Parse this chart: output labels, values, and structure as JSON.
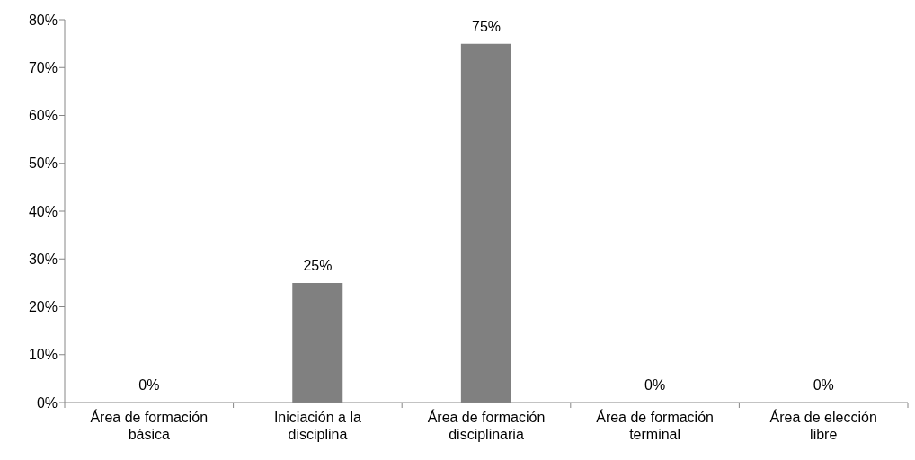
{
  "chart_data": {
    "type": "bar",
    "categories": [
      "Área de formación básica",
      "Iniciación a la disciplina",
      "Área de formación disciplinaria",
      "Área de formación terminal",
      "Área de elección libre"
    ],
    "values": [
      0,
      25,
      75,
      0,
      0
    ],
    "value_labels": [
      "0%",
      "25%",
      "75%",
      "0%",
      "0%"
    ],
    "color": "#808080",
    "ylim": [
      0,
      80
    ],
    "yticks": [
      {
        "value": 0,
        "label": "0%"
      },
      {
        "value": 10,
        "label": "10%"
      },
      {
        "value": 20,
        "label": "20%"
      },
      {
        "value": 30,
        "label": "30%"
      },
      {
        "value": 40,
        "label": "40%"
      },
      {
        "value": 50,
        "label": "50%"
      },
      {
        "value": 60,
        "label": "60%"
      },
      {
        "value": 70,
        "label": "70%"
      },
      {
        "value": 80,
        "label": "80%"
      }
    ],
    "grid": false,
    "legend": false
  }
}
